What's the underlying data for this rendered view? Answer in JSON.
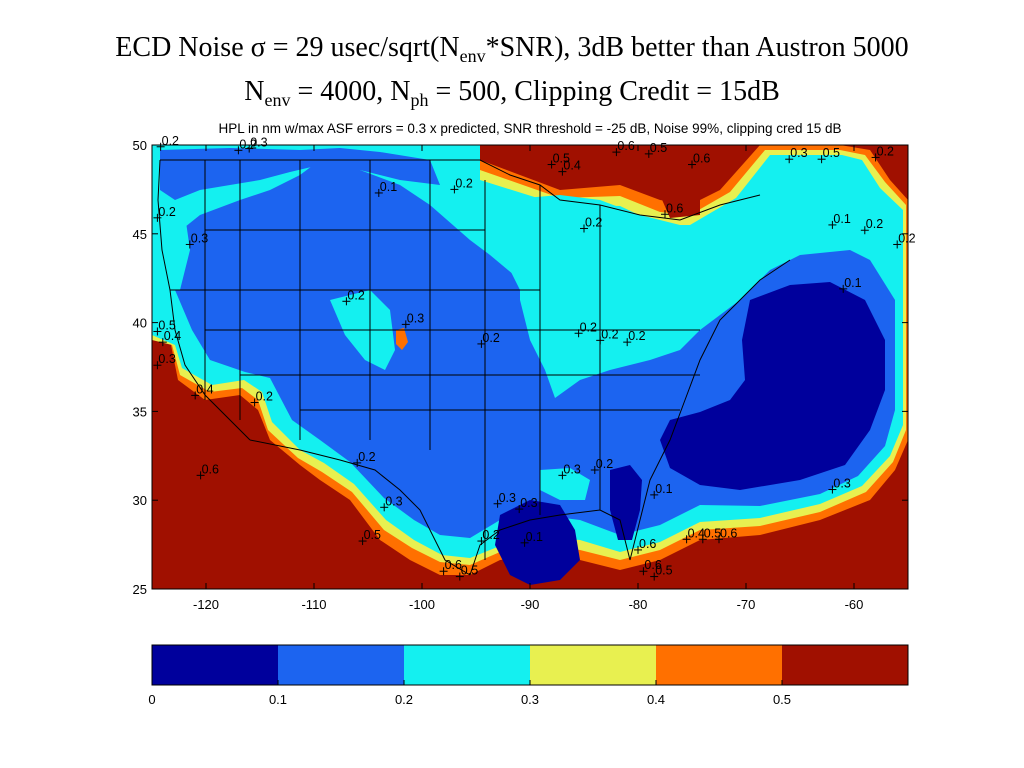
{
  "title": {
    "line1": {
      "a": "ECD Noise σ = 29 usec/sqrt(N",
      "b": "env",
      "c": "*SNR), 3dB better than Austron 5000"
    },
    "line2": {
      "a": "N",
      "b": "env",
      "c": " = 4000, N",
      "d": "ph",
      "e": " = 500, Clipping Credit = 15dB"
    }
  },
  "chart_data": {
    "type": "heatmap",
    "subtitle": "HPL in nm w/max ASF errors = 0.3 x predicted, SNR threshold = -25 dB, Noise 99%, clipping cred 15 dB",
    "xlim": [
      -125,
      -55
    ],
    "ylim": [
      25,
      50
    ],
    "x_ticks": [
      -120,
      -110,
      -100,
      -90,
      -80,
      -70,
      -60
    ],
    "y_ticks": [
      25,
      30,
      35,
      40,
      45,
      50
    ],
    "colorbar": {
      "ticks": [
        0,
        0.1,
        0.2,
        0.3,
        0.4,
        0.5
      ],
      "bins": [
        {
          "range": [
            0.0,
            0.1
          ],
          "color": "#00009c"
        },
        {
          "range": [
            0.1,
            0.2
          ],
          "color": "#1c64f0"
        },
        {
          "range": [
            0.2,
            0.3
          ],
          "color": "#14f0f0"
        },
        {
          "range": [
            0.3,
            0.4
          ],
          "color": "#e8f050"
        },
        {
          "range": [
            0.4,
            0.5
          ],
          "color": "#ff7000"
        },
        {
          "range": [
            0.5,
            0.6
          ],
          "color": "#a01000"
        }
      ]
    },
    "station_labels": [
      {
        "lon": -124.2,
        "lat": 49.9,
        "text": "0.2"
      },
      {
        "lon": -117.0,
        "lat": 49.7,
        "text": "0.2"
      },
      {
        "lon": -116.0,
        "lat": 49.8,
        "text": "0.3"
      },
      {
        "lon": -104.0,
        "lat": 47.3,
        "text": "0.1"
      },
      {
        "lon": -97.0,
        "lat": 47.5,
        "text": "0.2"
      },
      {
        "lon": -88.0,
        "lat": 48.9,
        "text": "0.5"
      },
      {
        "lon": -87.0,
        "lat": 48.5,
        "text": "0.4"
      },
      {
        "lon": -82.0,
        "lat": 49.6,
        "text": "0.6"
      },
      {
        "lon": -79.0,
        "lat": 49.5,
        "text": "0.5"
      },
      {
        "lon": -75.0,
        "lat": 48.9,
        "text": "0.6"
      },
      {
        "lon": -66.0,
        "lat": 49.2,
        "text": "0.3"
      },
      {
        "lon": -63.0,
        "lat": 49.2,
        "text": "0.5"
      },
      {
        "lon": -58.0,
        "lat": 49.3,
        "text": "0.2"
      },
      {
        "lon": -124.5,
        "lat": 45.9,
        "text": "0.2"
      },
      {
        "lon": -121.5,
        "lat": 44.4,
        "text": "0.3"
      },
      {
        "lon": -77.5,
        "lat": 46.1,
        "text": "0.6"
      },
      {
        "lon": -85.0,
        "lat": 45.3,
        "text": "0.2"
      },
      {
        "lon": -62.0,
        "lat": 45.5,
        "text": "0.1"
      },
      {
        "lon": -59.0,
        "lat": 45.2,
        "text": "0.2"
      },
      {
        "lon": -56.0,
        "lat": 44.4,
        "text": "0.2"
      },
      {
        "lon": -61.0,
        "lat": 41.9,
        "text": "0.1"
      },
      {
        "lon": -107.0,
        "lat": 41.2,
        "text": "0.2"
      },
      {
        "lon": -101.5,
        "lat": 39.9,
        "text": "0.3"
      },
      {
        "lon": -124.5,
        "lat": 39.5,
        "text": "0.5"
      },
      {
        "lon": -124.0,
        "lat": 38.9,
        "text": "0.4"
      },
      {
        "lon": -124.5,
        "lat": 37.6,
        "text": "0.3"
      },
      {
        "lon": -94.5,
        "lat": 38.8,
        "text": "0.2"
      },
      {
        "lon": -85.5,
        "lat": 39.4,
        "text": "0.2"
      },
      {
        "lon": -83.5,
        "lat": 39.0,
        "text": "0.2"
      },
      {
        "lon": -81.0,
        "lat": 38.9,
        "text": "0.2"
      },
      {
        "lon": -121.0,
        "lat": 35.9,
        "text": "0.4"
      },
      {
        "lon": -115.5,
        "lat": 35.5,
        "text": "0.2"
      },
      {
        "lon": -120.5,
        "lat": 31.4,
        "text": "0.6"
      },
      {
        "lon": -106.0,
        "lat": 32.1,
        "text": "0.2"
      },
      {
        "lon": -87.0,
        "lat": 31.4,
        "text": "0.3"
      },
      {
        "lon": -84.0,
        "lat": 31.7,
        "text": "0.2"
      },
      {
        "lon": -78.5,
        "lat": 30.3,
        "text": "0.1"
      },
      {
        "lon": -62.0,
        "lat": 30.6,
        "text": "0.3"
      },
      {
        "lon": -103.5,
        "lat": 29.6,
        "text": "0.3"
      },
      {
        "lon": -93.0,
        "lat": 29.8,
        "text": "0.3"
      },
      {
        "lon": -91.0,
        "lat": 29.5,
        "text": "0.3"
      },
      {
        "lon": -105.5,
        "lat": 27.7,
        "text": "0.5"
      },
      {
        "lon": -94.5,
        "lat": 27.7,
        "text": "0.2"
      },
      {
        "lon": -90.5,
        "lat": 27.6,
        "text": "0.1"
      },
      {
        "lon": -80.0,
        "lat": 27.2,
        "text": "0.6"
      },
      {
        "lon": -75.5,
        "lat": 27.8,
        "text": "0.4"
      },
      {
        "lon": -74.0,
        "lat": 27.8,
        "text": "0.5"
      },
      {
        "lon": -72.5,
        "lat": 27.8,
        "text": "0.6"
      },
      {
        "lon": -98.0,
        "lat": 26.0,
        "text": "0.6"
      },
      {
        "lon": -96.5,
        "lat": 25.7,
        "text": "0.5"
      },
      {
        "lon": -79.5,
        "lat": 26.0,
        "text": "0.6"
      },
      {
        "lon": -78.5,
        "lat": 25.7,
        "text": "0.5"
      }
    ]
  }
}
